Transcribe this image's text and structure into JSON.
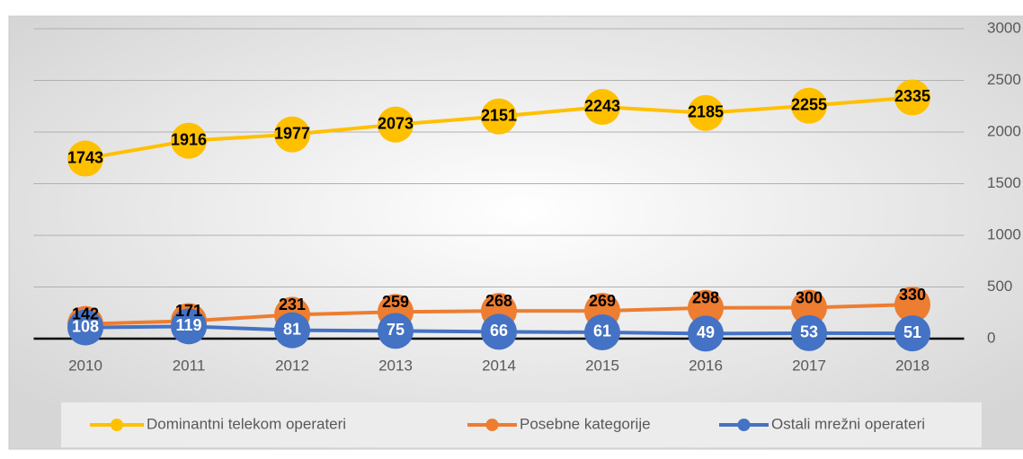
{
  "chart_data": {
    "type": "line",
    "categories": [
      "2010",
      "2011",
      "2012",
      "2013",
      "2014",
      "2015",
      "2016",
      "2017",
      "2018"
    ],
    "series": [
      {
        "name": "Dominantni telekom operateri",
        "color": "#FFC000",
        "values": [
          1743,
          1916,
          1977,
          2073,
          2151,
          2243,
          2185,
          2255,
          2335
        ]
      },
      {
        "name": "Posebne kategorije",
        "color": "#ED7D31",
        "values": [
          142,
          171,
          231,
          259,
          268,
          269,
          298,
          300,
          330
        ]
      },
      {
        "name": "Ostali mrežni operateri",
        "color": "#4472C4",
        "values": [
          108,
          119,
          81,
          75,
          66,
          61,
          49,
          53,
          51
        ]
      }
    ],
    "ylim": [
      0,
      3000
    ],
    "yticks": [
      0,
      500,
      1000,
      1500,
      2000,
      2500,
      3000
    ],
    "grid": true,
    "legend": "bottom"
  }
}
